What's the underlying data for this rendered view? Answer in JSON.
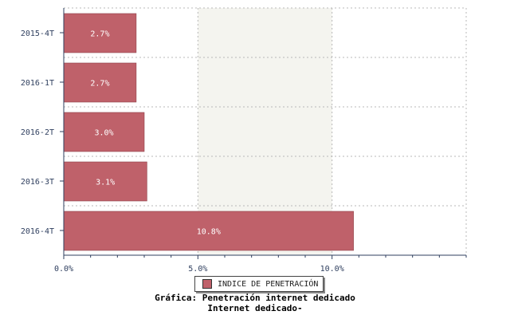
{
  "chart_data": {
    "type": "bar",
    "orientation": "horizontal",
    "categories": [
      "2015-4T",
      "2016-1T",
      "2016-2T",
      "2016-3T",
      "2016-4T"
    ],
    "series": [
      {
        "name": "INDICE DE PENETRACIÓN",
        "values": [
          2.7,
          2.7,
          3.0,
          3.1,
          10.8
        ]
      }
    ],
    "data_labels": [
      "2.7%",
      "2.7%",
      "3.0%",
      "3.1%",
      "10.8%"
    ],
    "x_ticks": [
      "0.0%",
      "5.0%",
      "10.0%"
    ],
    "x_tick_values": [
      0,
      5,
      10
    ],
    "xlim": [
      0,
      15
    ],
    "grid": true,
    "legend_position": "bottom",
    "colors": {
      "bar": "#bf616a",
      "band": "#f4f4ef",
      "grid": "#b8b8b8"
    }
  },
  "legend": {
    "label": "INDICE DE PENETRACIÓN"
  },
  "caption": {
    "line1": "Gráfica: Penetración internet dedicado",
    "line2": "Internet dedicado-"
  }
}
